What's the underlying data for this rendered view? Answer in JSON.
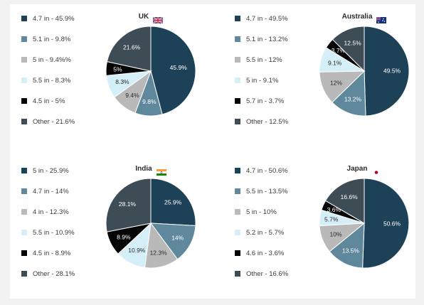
{
  "colors": {
    "dark_navy": "#1d4258",
    "steel_blue": "#5f889c",
    "light_gray": "#b9b9b9",
    "light_cyan": "#d4eff8",
    "black": "#050505",
    "charcoal": "#3d4c55"
  },
  "chart_data": [
    {
      "type": "pie",
      "title": "UK",
      "flag": "uk-flag",
      "legend_position": "left",
      "labels": [
        "4.7 in - 45.9%",
        "5.1 in - 9.8%",
        "5 in - 9.4%%",
        "5.5 in - 8.3%",
        "4.5 in - 5%",
        "Other - 21.6%"
      ],
      "values": [
        45.9,
        9.8,
        9.4,
        8.3,
        5,
        21.6
      ],
      "slice_labels": [
        "45.9%",
        "9.8%",
        "9.4%",
        "8.3%",
        "5%",
        "21.6%"
      ],
      "colors": [
        "#1d4258",
        "#5f889c",
        "#b9b9b9",
        "#d4eff8",
        "#050505",
        "#3d4c55"
      ]
    },
    {
      "type": "pie",
      "title": "Australia",
      "flag": "australia-flag",
      "legend_position": "left",
      "labels": [
        "4.7 in - 49.5%",
        "5.1 in - 13.2%",
        "5.5 in - 12%",
        "5 in - 9.1%",
        "5.7 in - 3.7%",
        "Other - 12.5%"
      ],
      "values": [
        49.5,
        13.2,
        12,
        9.1,
        3.7,
        12.5
      ],
      "slice_labels": [
        "49.5%",
        "13.2%",
        "12%",
        "9.1%",
        "3.7%",
        "12.5%"
      ],
      "colors": [
        "#1d4258",
        "#5f889c",
        "#b9b9b9",
        "#d4eff8",
        "#050505",
        "#3d4c55"
      ]
    },
    {
      "type": "pie",
      "title": "India",
      "flag": "india-flag",
      "legend_position": "left",
      "labels": [
        "5 in - 25.9%",
        "4.7 in - 14%",
        "4 in - 12.3%",
        "5.5 in - 10.9%",
        "4.5 in - 8.9%",
        "Other - 28.1%"
      ],
      "values": [
        25.9,
        14,
        12.3,
        10.9,
        8.9,
        28.1
      ],
      "slice_labels": [
        "25.9%",
        "14%",
        "12.3%",
        "10.9%",
        "8.9%",
        "28.1%"
      ],
      "colors": [
        "#1d4258",
        "#5f889c",
        "#b9b9b9",
        "#d4eff8",
        "#050505",
        "#3d4c55"
      ]
    },
    {
      "type": "pie",
      "title": "Japan",
      "flag": "japan-flag",
      "legend_position": "left",
      "labels": [
        "4.7 in - 50.6%",
        "5.5 in - 13.5%",
        "5 in - 10%",
        "5.2 in - 5.7%",
        "4.6 in - 3.6%",
        "Other - 16.6%"
      ],
      "values": [
        50.6,
        13.5,
        10,
        5.7,
        3.6,
        16.6
      ],
      "slice_labels": [
        "50.6%",
        "13.5%",
        "10%",
        "5.7%",
        "3.6%",
        "16.6%"
      ],
      "colors": [
        "#1d4258",
        "#5f889c",
        "#b9b9b9",
        "#d4eff8",
        "#050505",
        "#3d4c55"
      ]
    }
  ]
}
